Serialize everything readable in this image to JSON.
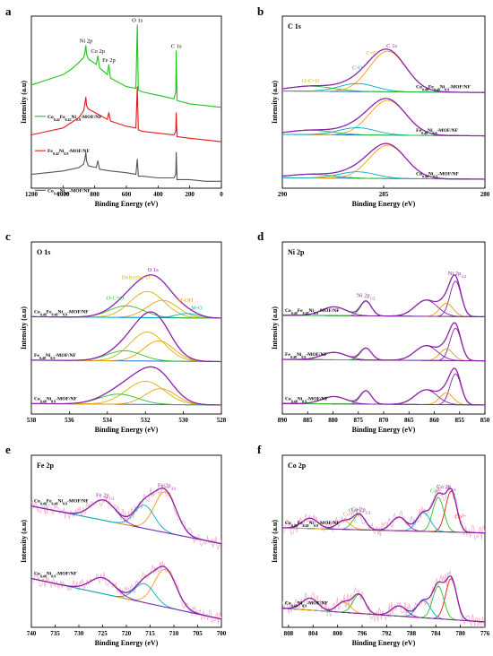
{
  "chart_data": [
    {
      "id": "a",
      "type": "line",
      "panel_label": "a",
      "title": "",
      "xlabel": "Binding Energy (eV)",
      "ylabel": "Intensity (a.u)",
      "xlim": [
        1200,
        0
      ],
      "x_reversed": true,
      "xticks": [
        1200,
        1000,
        800,
        600,
        400,
        200,
        0
      ],
      "yticks_visible": false,
      "grid": false,
      "peak_labels": [
        {
          "text": "Ni 2p",
          "x": 855,
          "color": "#000000"
        },
        {
          "text": "Co 2p",
          "x": 780,
          "color": "#000000"
        },
        {
          "text": "Fe 2p",
          "x": 711,
          "color": "#000000"
        },
        {
          "text": "O 1s",
          "x": 531,
          "color": "#000000"
        },
        {
          "text": "C 1s",
          "x": 285,
          "color": "#000000"
        }
      ],
      "series": [
        {
          "name": "Co0.42Fe0.42Ni0.9-MOF/NF",
          "color": "#22c21e",
          "x": [
            1200,
            1100,
            1000,
            950,
            900,
            870,
            862,
            856,
            852,
            840,
            790,
            780,
            770,
            720,
            711,
            700,
            600,
            540,
            531,
            525,
            500,
            400,
            300,
            288,
            285,
            280,
            200,
            100,
            0
          ],
          "y": [
            6.0,
            6.3,
            6.6,
            6.9,
            7.3,
            7.6,
            7.9,
            8.3,
            7.8,
            7.5,
            7.2,
            7.7,
            7.0,
            6.6,
            7.2,
            6.4,
            5.9,
            5.8,
            9.5,
            5.7,
            5.6,
            5.4,
            5.2,
            5.6,
            8.0,
            5.1,
            4.9,
            4.8,
            4.7
          ]
        },
        {
          "name": "Fe0.42Ni0.9-MOF/NF",
          "color": "#e3161c",
          "x": [
            1200,
            1100,
            1000,
            950,
            900,
            870,
            862,
            856,
            852,
            840,
            780,
            720,
            711,
            700,
            600,
            540,
            531,
            525,
            500,
            400,
            300,
            288,
            285,
            280,
            200,
            100,
            0
          ],
          "y": [
            3.1,
            3.3,
            3.5,
            3.8,
            4.1,
            4.5,
            4.9,
            5.3,
            4.8,
            4.6,
            4.3,
            4.0,
            4.4,
            3.9,
            3.6,
            3.5,
            5.9,
            3.4,
            3.3,
            3.2,
            3.1,
            3.3,
            4.4,
            3.0,
            2.9,
            2.8,
            2.7
          ]
        },
        {
          "name": "Co0.42Ni0.9-MOF/NF",
          "color": "#555555",
          "x": [
            1200,
            1100,
            1000,
            950,
            900,
            870,
            862,
            856,
            852,
            840,
            790,
            780,
            770,
            700,
            600,
            540,
            531,
            525,
            500,
            400,
            300,
            288,
            285,
            280,
            200,
            100,
            0
          ],
          "y": [
            0.8,
            0.9,
            1.0,
            1.1,
            1.2,
            1.4,
            1.7,
            2.1,
            1.6,
            1.3,
            1.2,
            1.6,
            1.1,
            1.0,
            0.9,
            0.8,
            1.7,
            0.7,
            0.7,
            0.6,
            0.6,
            0.8,
            2.1,
            0.5,
            0.5,
            0.4,
            0.4
          ]
        }
      ]
    },
    {
      "id": "b",
      "type": "line",
      "panel_label": "b",
      "title": "C 1s",
      "xlabel": "Binding Energy (eV)",
      "ylabel": "Intensity (a.u)",
      "xlim": [
        290,
        280
      ],
      "x_reversed": true,
      "xticks": [
        290,
        285,
        280
      ],
      "yticks_visible": false,
      "grid": false,
      "peak_labels": [
        {
          "text": "O-C=O",
          "x": 288.6,
          "color": "#d4b500"
        },
        {
          "text": "C-O",
          "x": 286.3,
          "color": "#00b0c8"
        },
        {
          "text": "C=C",
          "x": 285.6,
          "color": "#f39c12"
        },
        {
          "text": "C 1s",
          "x": 284.6,
          "color": "#8b22a8"
        }
      ],
      "samples": [
        {
          "name": "Co0.48Fe0.48Ni0.9-MOF/NF",
          "offset": 6.0,
          "components": [
            {
              "center": 284.8,
              "height": 2.8,
              "width": 0.9,
              "color": "#f39c12"
            },
            {
              "center": 286.3,
              "height": 0.55,
              "width": 0.9,
              "color": "#00b0c8"
            },
            {
              "center": 288.6,
              "height": 0.35,
              "width": 1.1,
              "color": "#2bbf2b"
            }
          ]
        },
        {
          "name": "Fe0.48Ni0.9-MOF/NF",
          "offset": 3.0,
          "components": [
            {
              "center": 284.8,
              "height": 2.4,
              "width": 0.9,
              "color": "#f39c12"
            },
            {
              "center": 286.3,
              "height": 0.5,
              "width": 0.9,
              "color": "#00b0c8"
            },
            {
              "center": 288.6,
              "height": 0.3,
              "width": 1.1,
              "color": "#2bbf2b"
            }
          ]
        },
        {
          "name": "Co0.48Ni0.9-MOF/NF",
          "offset": 0.0,
          "components": [
            {
              "center": 284.8,
              "height": 2.3,
              "width": 0.9,
              "color": "#f39c12"
            },
            {
              "center": 286.3,
              "height": 0.45,
              "width": 0.9,
              "color": "#00b0c8"
            },
            {
              "center": 288.6,
              "height": 0.25,
              "width": 1.1,
              "color": "#2bbf2b"
            }
          ]
        }
      ]
    },
    {
      "id": "c",
      "type": "line",
      "panel_label": "c",
      "title": "O 1s",
      "xlabel": "Binding Energy (eV)",
      "ylabel": "Intensity (a.u)",
      "xlim": [
        538,
        528
      ],
      "x_reversed": true,
      "xticks": [
        538,
        536,
        534,
        532,
        530,
        528
      ],
      "yticks_visible": false,
      "grid": false,
      "peak_labels": [
        {
          "text": "O-C=O",
          "x": 533.6,
          "color": "#2bbf2b"
        },
        {
          "text": "Defective O",
          "x": 532.5,
          "color": "#d4b500"
        },
        {
          "text": "O 1s",
          "x": 531.6,
          "color": "#8b22a8"
        },
        {
          "text": "M-OH",
          "x": 529.9,
          "color": "#f39c12"
        },
        {
          "text": "M-O",
          "x": 529.3,
          "color": "#00b0c8"
        }
      ],
      "samples": [
        {
          "name": "Co0.48Fe0.48Ni0.9-MOF/NF",
          "offset": 6.0,
          "components": [
            {
              "center": 531.9,
              "height": 1.8,
              "width": 0.9,
              "color": "#d4b500"
            },
            {
              "center": 531.1,
              "height": 1.2,
              "width": 0.8,
              "color": "#f39c12"
            },
            {
              "center": 533.0,
              "height": 0.8,
              "width": 0.9,
              "color": "#2bbf2b"
            },
            {
              "center": 529.8,
              "height": 0.3,
              "width": 0.6,
              "color": "#00b0c8"
            }
          ]
        },
        {
          "name": "Fe0.48Ni0.9-MOF/NF",
          "offset": 3.0,
          "components": [
            {
              "center": 531.9,
              "height": 2.0,
              "width": 0.9,
              "color": "#d4b500"
            },
            {
              "center": 531.3,
              "height": 1.4,
              "width": 0.8,
              "color": "#f39c12"
            },
            {
              "center": 533.1,
              "height": 0.7,
              "width": 0.9,
              "color": "#2bbf2b"
            }
          ]
        },
        {
          "name": "Co0.48Ni0.9-MOF/NF",
          "offset": 0.0,
          "components": [
            {
              "center": 532.0,
              "height": 1.6,
              "width": 1.0,
              "color": "#d4b500"
            },
            {
              "center": 531.2,
              "height": 1.1,
              "width": 0.8,
              "color": "#f39c12"
            },
            {
              "center": 533.4,
              "height": 0.7,
              "width": 1.0,
              "color": "#2bbf2b"
            }
          ]
        }
      ]
    },
    {
      "id": "d",
      "type": "line",
      "panel_label": "d",
      "title": "Ni 2p",
      "xlabel": "Binding Energy (eV)",
      "ylabel": "Intensity (a.u)",
      "xlim": [
        890,
        850
      ],
      "x_reversed": true,
      "xticks": [
        890,
        885,
        880,
        875,
        870,
        865,
        860,
        855,
        850
      ],
      "yticks_visible": false,
      "grid": false,
      "peak_labels": [
        {
          "text": "Ni 2p1/2",
          "x": 873.5,
          "color": "#8b22a8"
        },
        {
          "text": "Ni 2p3/2",
          "x": 855.5,
          "color": "#8b22a8"
        }
      ],
      "samples": [
        {
          "name": "Co0.48Fe0.48Ni0.9-MOF/NF",
          "offset": 6.0,
          "components": [
            {
              "center": 855.8,
              "height": 2.4,
              "width": 1.1,
              "color": "#8b22a8"
            },
            {
              "center": 857.6,
              "height": 0.9,
              "width": 1.3,
              "color": "#f39c12"
            },
            {
              "center": 861.6,
              "height": 1.1,
              "width": 2.2,
              "color": "#8b22a8"
            },
            {
              "center": 873.5,
              "height": 1.0,
              "width": 1.1,
              "color": "#2bbf2b"
            },
            {
              "center": 879.8,
              "height": 0.6,
              "width": 2.4,
              "color": "#8b22a8"
            }
          ]
        },
        {
          "name": "Fe0.48Ni0.9-MOF/NF",
          "offset": 3.0,
          "components": [
            {
              "center": 855.8,
              "height": 2.2,
              "width": 1.1,
              "color": "#8b22a8"
            },
            {
              "center": 857.6,
              "height": 0.8,
              "width": 1.3,
              "color": "#f39c12"
            },
            {
              "center": 861.6,
              "height": 1.0,
              "width": 2.2,
              "color": "#8b22a8"
            },
            {
              "center": 873.5,
              "height": 0.8,
              "width": 1.1,
              "color": "#2bbf2b"
            },
            {
              "center": 879.8,
              "height": 0.5,
              "width": 2.4,
              "color": "#8b22a8"
            }
          ]
        },
        {
          "name": "Co0.48Ni0.9-MOF/NF",
          "offset": 0.0,
          "components": [
            {
              "center": 855.8,
              "height": 2.1,
              "width": 1.1,
              "color": "#8b22a8"
            },
            {
              "center": 857.6,
              "height": 0.8,
              "width": 1.3,
              "color": "#f39c12"
            },
            {
              "center": 861.6,
              "height": 1.0,
              "width": 2.2,
              "color": "#8b22a8"
            },
            {
              "center": 873.5,
              "height": 0.9,
              "width": 1.1,
              "color": "#2bbf2b"
            },
            {
              "center": 879.8,
              "height": 0.5,
              "width": 2.4,
              "color": "#8b22a8"
            }
          ]
        }
      ]
    },
    {
      "id": "e",
      "type": "line",
      "panel_label": "e",
      "title": "Fe 2p",
      "xlabel": "Binding Energy (eV)",
      "ylabel": "Intensity (a.u)",
      "xlim": [
        740,
        700
      ],
      "x_reversed": true,
      "xticks": [
        740,
        735,
        730,
        725,
        720,
        715,
        710,
        705,
        700
      ],
      "yticks_visible": false,
      "grid": false,
      "peak_labels": [
        {
          "text": "Fe 2p1/2",
          "x": 724.5,
          "color": "#8b22a8"
        },
        {
          "text": "Fe 2p3/2",
          "x": 711.5,
          "color": "#8b22a8"
        }
      ],
      "samples": [
        {
          "name": "Co0.48Fe0.48Ni0.9-MOF/NF",
          "offset": 5.0,
          "bg_start": 3.0,
          "bg_end": 0.4,
          "components": [
            {
              "center": 711.8,
              "height": 2.8,
              "width": 2.3,
              "color": "#f39c12"
            },
            {
              "center": 716.2,
              "height": 1.6,
              "width": 2.1,
              "color": "#00b0c8"
            },
            {
              "center": 724.8,
              "height": 1.4,
              "width": 2.6,
              "color": "#8b22a8"
            }
          ]
        },
        {
          "name": "Co0.48Ni0.9-MOF/NF",
          "offset": 0.0,
          "bg_start": 3.0,
          "bg_end": 0.2,
          "components": [
            {
              "center": 711.8,
              "height": 2.6,
              "width": 2.3,
              "color": "#f39c12"
            },
            {
              "center": 716.2,
              "height": 1.3,
              "width": 2.1,
              "color": "#00b0c8"
            },
            {
              "center": 725.0,
              "height": 1.1,
              "width": 2.6,
              "color": "#8b22a8"
            }
          ]
        }
      ]
    },
    {
      "id": "f",
      "type": "line",
      "panel_label": "f",
      "title": "Co 2p",
      "xlabel": "Binding Energy (eV)",
      "ylabel": "Intensity (a.u)",
      "xlim": [
        809,
        776
      ],
      "x_reversed": true,
      "xticks": [
        808,
        804,
        800,
        796,
        792,
        788,
        784,
        780,
        776
      ],
      "yticks_visible": false,
      "grid": false,
      "peak_labels": [
        {
          "text": "Co2+",
          "x": 798.2,
          "color": "#f39c12"
        },
        {
          "text": "Co3+",
          "x": 797.3,
          "color": "#2bbf2b"
        },
        {
          "text": "Co 2p1/2",
          "x": 796.2,
          "color": "#8b22a8"
        },
        {
          "text": "Co2+",
          "x": 784.0,
          "color": "#2bbf2b"
        },
        {
          "text": "Co 2p3/2",
          "x": 782.3,
          "color": "#8b22a8"
        },
        {
          "text": "Co3+",
          "x": 780.0,
          "color": "#e3161c"
        }
      ],
      "samples": [
        {
          "name": "Co0.48Fe0.48Ni0.9-MOF/NF",
          "offset": 5.2,
          "bg_start": 0.3,
          "bg_end": 0.0,
          "components": [
            {
              "center": 781.5,
              "height": 2.4,
              "width": 0.9,
              "color": "#e3161c"
            },
            {
              "center": 783.6,
              "height": 2.0,
              "width": 0.9,
              "color": "#2bbf2b"
            },
            {
              "center": 786.0,
              "height": 1.1,
              "width": 1.1,
              "color": "#00b0c8"
            },
            {
              "center": 790.0,
              "height": 0.8,
              "width": 1.2,
              "color": "#8b22a8"
            },
            {
              "center": 796.5,
              "height": 0.9,
              "width": 1.0,
              "color": "#2bbf2b"
            },
            {
              "center": 799.0,
              "height": 0.5,
              "width": 1.1,
              "color": "#f39c12"
            },
            {
              "center": 804.5,
              "height": 0.6,
              "width": 1.3,
              "color": "#8b22a8"
            }
          ]
        },
        {
          "name": "Co0.48Ni0.9-MOF/NF",
          "offset": 0.0,
          "bg_start": 0.8,
          "bg_end": 0.0,
          "components": [
            {
              "center": 781.5,
              "height": 2.4,
              "width": 0.9,
              "color": "#e3161c"
            },
            {
              "center": 783.6,
              "height": 1.9,
              "width": 0.9,
              "color": "#2bbf2b"
            },
            {
              "center": 786.0,
              "height": 1.0,
              "width": 1.1,
              "color": "#00b0c8"
            },
            {
              "center": 790.0,
              "height": 0.6,
              "width": 1.2,
              "color": "#8b22a8"
            },
            {
              "center": 796.5,
              "height": 1.1,
              "width": 1.0,
              "color": "#2bbf2b"
            },
            {
              "center": 799.0,
              "height": 0.6,
              "width": 1.1,
              "color": "#f39c12"
            },
            {
              "center": 804.5,
              "height": 0.7,
              "width": 1.3,
              "color": "#8b22a8"
            }
          ]
        }
      ]
    }
  ]
}
